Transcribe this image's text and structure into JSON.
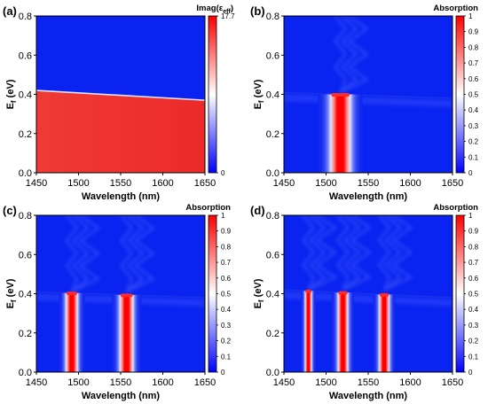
{
  "colors": {
    "low": "#0000ff",
    "mid": "#ffffff",
    "high": "#ff0000",
    "base": "#0a23f0",
    "region": "#f0322e"
  },
  "chart_data": [
    {
      "panel": "(a)",
      "type": "heatmap",
      "xlabel": "Wavelength (nm)",
      "ylabel_main": "E",
      "ylabel_sub": "f",
      "ylabel_unit": " (eV)",
      "xlim": [
        1450,
        1650
      ],
      "ylim": [
        0,
        0.8
      ],
      "xticks": [
        "1450",
        "1500",
        "1550",
        "1600",
        "1650"
      ],
      "yticks": [
        "0.0",
        "0.2",
        "0.4",
        "0.6",
        "0.8"
      ],
      "colorbar_title_main": "Imag(ε",
      "colorbar_title_sub": "eff",
      "colorbar_title_end": ")",
      "colorbar_ticks": [
        "17.7",
        "0"
      ],
      "colorbar_range": [
        0,
        17.7
      ],
      "boundary_line": {
        "x": [
          1450,
          1650
        ],
        "y": [
          0.42,
          0.37
        ]
      },
      "region_below_value": 15.5,
      "region_above_value": 0
    },
    {
      "panel": "(b)",
      "type": "heatmap",
      "xlabel": "Wavelength (nm)",
      "ylabel_main": "E",
      "ylabel_sub": "f",
      "ylabel_unit": " (eV)",
      "xlim": [
        1450,
        1650
      ],
      "ylim": [
        0,
        0.8
      ],
      "xticks": [
        "1450",
        "1500",
        "1550",
        "1600",
        "1650"
      ],
      "yticks": [
        "0.0",
        "0.2",
        "0.4",
        "0.6",
        "0.8"
      ],
      "colorbar_title": "Absorption",
      "colorbar_ticks": [
        "1",
        "0.9",
        "0.8",
        "0.7",
        "0.6",
        "0.5",
        "0.4",
        "0.3",
        "0.2",
        "0.1",
        "0"
      ],
      "colorbar_range": [
        0,
        1
      ],
      "threshold_line": {
        "x": [
          1450,
          1650
        ],
        "y": [
          0.41,
          0.38
        ]
      },
      "resonances": [
        {
          "center": 1517,
          "width": 12,
          "peak": 1.0
        }
      ]
    },
    {
      "panel": "(c)",
      "type": "heatmap",
      "xlabel": "Wavelength (nm)",
      "ylabel_main": "E",
      "ylabel_sub": "f",
      "ylabel_unit": " (eV)",
      "xlim": [
        1450,
        1650
      ],
      "ylim": [
        0,
        0.8
      ],
      "xticks": [
        "1450",
        "1500",
        "1550",
        "1600",
        "1650"
      ],
      "yticks": [
        "0.0",
        "0.2",
        "0.4",
        "0.6",
        "0.8"
      ],
      "colorbar_title": "Absorption",
      "colorbar_ticks": [
        "1",
        "0.9",
        "0.8",
        "0.7",
        "0.6",
        "0.5",
        "0.4",
        "0.3",
        "0.2",
        "0.1",
        "0"
      ],
      "colorbar_range": [
        0,
        1
      ],
      "threshold_line": {
        "x": [
          1450,
          1650
        ],
        "y": [
          0.41,
          0.38
        ]
      },
      "resonances": [
        {
          "center": 1492,
          "width": 7,
          "peak": 1.0
        },
        {
          "center": 1557,
          "width": 8,
          "peak": 1.0
        }
      ]
    },
    {
      "panel": "(d)",
      "type": "heatmap",
      "xlabel": "Wavelength (nm)",
      "ylabel_main": "E",
      "ylabel_sub": "f",
      "ylabel_unit": " (eV)",
      "xlim": [
        1450,
        1650
      ],
      "ylim": [
        0,
        0.8
      ],
      "xticks": [
        "1450",
        "1500",
        "1550",
        "1600",
        "1650"
      ],
      "yticks": [
        "0.0",
        "0.2",
        "0.4",
        "0.6",
        "0.8"
      ],
      "colorbar_title": "Absorption",
      "colorbar_ticks": [
        "1",
        "0.9",
        "0.8",
        "0.7",
        "0.6",
        "0.5",
        "0.4",
        "0.3",
        "0.2",
        "0.1",
        "0"
      ],
      "colorbar_range": [
        0,
        1
      ],
      "threshold_line": {
        "x": [
          1450,
          1650
        ],
        "y": [
          0.42,
          0.38
        ]
      },
      "resonances": [
        {
          "center": 1479,
          "width": 4,
          "peak": 1.0
        },
        {
          "center": 1520,
          "width": 6,
          "peak": 1.0
        },
        {
          "center": 1569,
          "width": 6,
          "peak": 1.0
        }
      ]
    }
  ]
}
